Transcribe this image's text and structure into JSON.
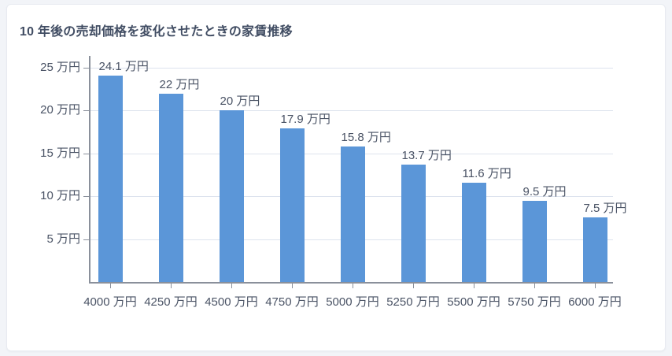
{
  "chart_data": {
    "type": "bar",
    "title": "10 年後の売却価格を変化させたときの家賃推移",
    "categories": [
      "4000 万円",
      "4250 万円",
      "4500 万円",
      "4750 万円",
      "5000 万円",
      "5250 万円",
      "5500 万円",
      "5750 万円",
      "6000 万円"
    ],
    "values": [
      24.1,
      22,
      20,
      17.9,
      15.8,
      13.7,
      11.6,
      9.5,
      7.5
    ],
    "value_labels": [
      "24.1 万円",
      "22 万円",
      "20 万円",
      "17.9 万円",
      "15.8 万円",
      "13.7 万円",
      "11.6 万円",
      "9.5 万円",
      "7.5 万円"
    ],
    "unit": "万円",
    "xlabel": "",
    "ylabel": "",
    "ylim": [
      0,
      25
    ],
    "y_ticks": [
      {
        "value": 5,
        "label": "5 万円"
      },
      {
        "value": 10,
        "label": "10 万円"
      },
      {
        "value": 15,
        "label": "15 万円"
      },
      {
        "value": 20,
        "label": "20 万円"
      },
      {
        "value": 25,
        "label": "25 万円"
      }
    ],
    "grid": true,
    "legend": false,
    "colors": {
      "bar": "#5b96d8",
      "grid": "#dde3ee",
      "axis": "#8a909b",
      "tick": "#8a909b",
      "label": "#4a5365",
      "title": "#414d63",
      "page_bg": "#f2f4f8",
      "card_bg": "#ffffff",
      "card_border": "#e8ebf1"
    }
  }
}
